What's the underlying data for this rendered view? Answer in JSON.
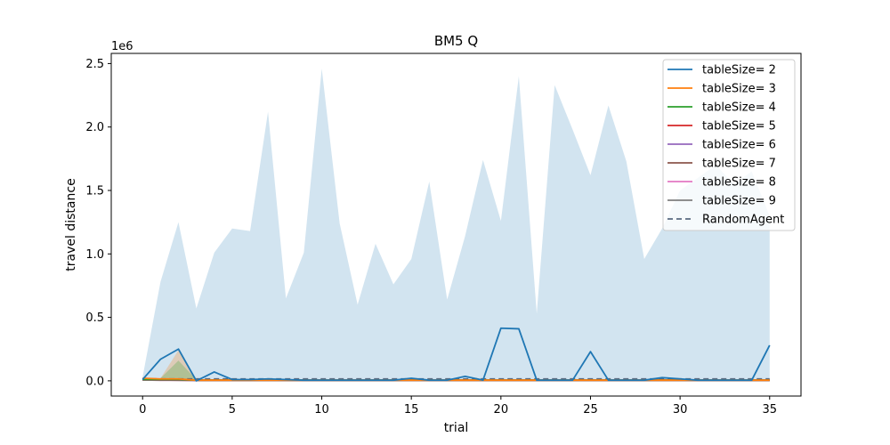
{
  "chart_data": {
    "type": "line",
    "title": "BM5  Q",
    "xlabel": "trial",
    "ylabel": "travel distance",
    "y_offset_label": "1e6",
    "xlim": [
      -1.75,
      36.75
    ],
    "ylim": [
      -0.12,
      2.58
    ],
    "y_scale_factor": 1000000,
    "xticks": [
      0,
      5,
      10,
      15,
      20,
      25,
      30,
      35
    ],
    "yticks": [
      0.0,
      0.5,
      1.0,
      1.5,
      2.0,
      2.5
    ],
    "ytick_labels": [
      "0.0",
      "0.5",
      "1.0",
      "1.5",
      "2.0",
      "2.5"
    ],
    "grid": false,
    "legend_position": "top-right",
    "x": [
      0,
      1,
      2,
      3,
      4,
      5,
      6,
      7,
      8,
      9,
      10,
      11,
      12,
      13,
      14,
      15,
      16,
      17,
      18,
      19,
      20,
      21,
      22,
      23,
      24,
      25,
      26,
      27,
      28,
      29,
      30,
      31,
      32,
      33,
      34,
      35
    ],
    "bands": [
      {
        "series": "tableSize= 2",
        "color": "#1f77b4",
        "opacity": 0.2,
        "upper": [
          0.03,
          0.78,
          1.25,
          0.57,
          1.01,
          1.2,
          1.18,
          2.12,
          0.65,
          1.01,
          2.46,
          1.24,
          0.6,
          1.08,
          0.76,
          0.96,
          1.57,
          0.64,
          1.14,
          1.74,
          1.26,
          2.4,
          0.53,
          2.33,
          1.98,
          1.62,
          2.17,
          1.73,
          0.96,
          1.2,
          1.5,
          1.6,
          1.7,
          1.55,
          1.65,
          1.3
        ],
        "lower": [
          0,
          0,
          0,
          0,
          0,
          0,
          0,
          0,
          0,
          0,
          0,
          0,
          0,
          0,
          0,
          0,
          0,
          0,
          0,
          0,
          0,
          0,
          0,
          0,
          0,
          0,
          0,
          0,
          0,
          0,
          0,
          0,
          0,
          0,
          0,
          0
        ]
      },
      {
        "series": "tableSize= 3",
        "color": "#ff7f0e",
        "opacity": 0.25,
        "upper": [
          0.02,
          0.02,
          0.24,
          0.01,
          0.01,
          0.01,
          0.01,
          0.01,
          0.01,
          0.01,
          0.01,
          0.01,
          0.01,
          0.01,
          0.01,
          0.01,
          0.01,
          0.01,
          0.01,
          0.01,
          0.01,
          0.01,
          0.01,
          0.01,
          0.01,
          0.01,
          0.01,
          0.01,
          0.01,
          0.01,
          0.01,
          0.01,
          0.01,
          0.01,
          0.01,
          0.01
        ],
        "lower": [
          0,
          0,
          0,
          0,
          0,
          0,
          0,
          0,
          0,
          0,
          0,
          0,
          0,
          0,
          0,
          0,
          0,
          0,
          0,
          0,
          0,
          0,
          0,
          0,
          0,
          0,
          0,
          0,
          0,
          0,
          0,
          0,
          0,
          0,
          0,
          0
        ]
      },
      {
        "series": "tableSize= 4",
        "color": "#2ca02c",
        "opacity": 0.25,
        "upper": [
          0.01,
          0.02,
          0.16,
          0.01,
          0.005,
          0.005,
          0.005,
          0.005,
          0.005,
          0.005,
          0.005,
          0.005,
          0.005,
          0.005,
          0.005,
          0.005,
          0.005,
          0.005,
          0.005,
          0.005,
          0.005,
          0.005,
          0.005,
          0.005,
          0.005,
          0.005,
          0.005,
          0.005,
          0.005,
          0.005,
          0.005,
          0.005,
          0.005,
          0.005,
          0.005,
          0.005
        ],
        "lower": [
          0,
          0,
          0,
          0,
          0,
          0,
          0,
          0,
          0,
          0,
          0,
          0,
          0,
          0,
          0,
          0,
          0,
          0,
          0,
          0,
          0,
          0,
          0,
          0,
          0,
          0,
          0,
          0,
          0,
          0,
          0,
          0,
          0,
          0,
          0,
          0
        ]
      }
    ],
    "series": [
      {
        "name": "tableSize= 2",
        "color": "#1f77b4",
        "dash": "",
        "values": [
          0.01,
          0.17,
          0.25,
          0.0,
          0.07,
          0.01,
          0.01,
          0.015,
          0.01,
          0.005,
          0.005,
          0.005,
          0.005,
          0.005,
          0.005,
          0.02,
          0.005,
          0.005,
          0.035,
          0.005,
          0.415,
          0.41,
          0.005,
          0.005,
          0.005,
          0.23,
          0.005,
          0.005,
          0.005,
          0.025,
          0.015,
          0.005,
          0.005,
          0.005,
          0.005,
          0.28
        ]
      },
      {
        "name": "tableSize= 3",
        "color": "#ff7f0e",
        "dash": "",
        "values": [
          0.02,
          0.015,
          0.015,
          0.005,
          0.005,
          0.005,
          0.005,
          0.005,
          0.005,
          0.005,
          0.005,
          0.005,
          0.005,
          0.005,
          0.005,
          0.005,
          0.005,
          0.005,
          0.005,
          0.005,
          0.005,
          0.005,
          0.005,
          0.005,
          0.005,
          0.005,
          0.005,
          0.005,
          0.005,
          0.005,
          0.005,
          0.005,
          0.005,
          0.005,
          0.005,
          0.005
        ]
      },
      {
        "name": "tableSize= 4",
        "color": "#2ca02c",
        "dash": "",
        "values": [
          0.01,
          0.01,
          0.01,
          0.005,
          0.005,
          0.005,
          0.005,
          0.005,
          0.005,
          0.005,
          0.005,
          0.005,
          0.005,
          0.005,
          0.005,
          0.005,
          0.005,
          0.005,
          0.005,
          0.005,
          0.005,
          0.005,
          0.005,
          0.005,
          0.005,
          0.005,
          0.005,
          0.005,
          0.005,
          0.005,
          0.005,
          0.005,
          0.005,
          0.005,
          0.005,
          0.005
        ]
      },
      {
        "name": "tableSize= 5",
        "color": "#d62728",
        "dash": "",
        "values": [
          0.01,
          0.008,
          0.008,
          0.005,
          0.005,
          0.005,
          0.005,
          0.005,
          0.005,
          0.005,
          0.005,
          0.005,
          0.005,
          0.005,
          0.005,
          0.005,
          0.005,
          0.005,
          0.005,
          0.005,
          0.005,
          0.005,
          0.005,
          0.005,
          0.005,
          0.005,
          0.005,
          0.005,
          0.005,
          0.005,
          0.005,
          0.005,
          0.005,
          0.005,
          0.005,
          0.005
        ]
      },
      {
        "name": "tableSize= 6",
        "color": "#9467bd",
        "dash": "",
        "values": [
          0.008,
          0.006,
          0.006,
          0.004,
          0.004,
          0.004,
          0.004,
          0.004,
          0.004,
          0.004,
          0.004,
          0.004,
          0.004,
          0.004,
          0.004,
          0.004,
          0.004,
          0.004,
          0.004,
          0.004,
          0.004,
          0.004,
          0.004,
          0.004,
          0.004,
          0.004,
          0.004,
          0.004,
          0.004,
          0.004,
          0.004,
          0.004,
          0.004,
          0.004,
          0.004,
          0.004
        ]
      },
      {
        "name": "tableSize= 7",
        "color": "#8c564b",
        "dash": "",
        "values": [
          0.008,
          0.006,
          0.005,
          0.004,
          0.004,
          0.004,
          0.004,
          0.004,
          0.004,
          0.004,
          0.004,
          0.004,
          0.004,
          0.004,
          0.004,
          0.004,
          0.004,
          0.004,
          0.004,
          0.004,
          0.004,
          0.004,
          0.004,
          0.004,
          0.004,
          0.004,
          0.004,
          0.004,
          0.004,
          0.004,
          0.004,
          0.004,
          0.004,
          0.004,
          0.004,
          0.004
        ]
      },
      {
        "name": "tableSize= 8",
        "color": "#e377c2",
        "dash": "",
        "values": [
          0.006,
          0.005,
          0.005,
          0.004,
          0.004,
          0.004,
          0.004,
          0.004,
          0.004,
          0.004,
          0.004,
          0.004,
          0.004,
          0.004,
          0.004,
          0.004,
          0.004,
          0.004,
          0.004,
          0.004,
          0.004,
          0.004,
          0.004,
          0.004,
          0.004,
          0.004,
          0.004,
          0.004,
          0.004,
          0.004,
          0.004,
          0.004,
          0.004,
          0.004,
          0.004,
          0.004
        ]
      },
      {
        "name": "tableSize= 9",
        "color": "#7f7f7f",
        "dash": "",
        "values": [
          0.006,
          0.005,
          0.005,
          0.004,
          0.004,
          0.004,
          0.004,
          0.004,
          0.004,
          0.004,
          0.004,
          0.004,
          0.004,
          0.004,
          0.004,
          0.004,
          0.004,
          0.004,
          0.004,
          0.004,
          0.004,
          0.004,
          0.004,
          0.004,
          0.004,
          0.004,
          0.004,
          0.004,
          0.004,
          0.004,
          0.004,
          0.004,
          0.004,
          0.004,
          0.004,
          0.004
        ]
      },
      {
        "name": "RandomAgent",
        "color": "#5a6a80",
        "dash": "6,4",
        "values": [
          0.015,
          0.015,
          0.015,
          0.015,
          0.015,
          0.015,
          0.015,
          0.015,
          0.015,
          0.015,
          0.015,
          0.015,
          0.015,
          0.015,
          0.015,
          0.015,
          0.015,
          0.015,
          0.015,
          0.015,
          0.015,
          0.015,
          0.015,
          0.015,
          0.015,
          0.015,
          0.015,
          0.015,
          0.015,
          0.015,
          0.015,
          0.015,
          0.015,
          0.015,
          0.015,
          0.015
        ]
      }
    ]
  }
}
